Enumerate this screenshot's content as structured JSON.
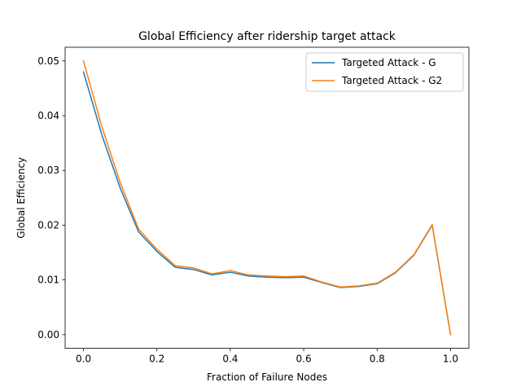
{
  "chart_data": {
    "type": "line",
    "title": "Global Efficiency after ridership target attack",
    "xlabel": "Fraction of Failure Nodes",
    "ylabel": "Global Efficiency",
    "xlim": [
      -0.05,
      1.05
    ],
    "ylim": [
      -0.0025,
      0.0525
    ],
    "xticks": [
      0.0,
      0.2,
      0.4,
      0.6,
      0.8,
      1.0
    ],
    "xtick_labels": [
      "0.0",
      "0.2",
      "0.4",
      "0.6",
      "0.8",
      "1.0"
    ],
    "yticks": [
      0.0,
      0.01,
      0.02,
      0.03,
      0.04,
      0.05
    ],
    "ytick_labels": [
      "0.00",
      "0.01",
      "0.02",
      "0.03",
      "0.04",
      "0.05"
    ],
    "grid": false,
    "legend_position": "top-right",
    "x": [
      0.0,
      0.05,
      0.1,
      0.15,
      0.2,
      0.25,
      0.3,
      0.35,
      0.4,
      0.45,
      0.5,
      0.55,
      0.6,
      0.65,
      0.7,
      0.75,
      0.8,
      0.85,
      0.9,
      0.95,
      1.0
    ],
    "series": [
      {
        "name": "Targeted Attack - G",
        "color": "#1f77b4",
        "values": [
          0.048,
          0.0365,
          0.0268,
          0.0188,
          0.0152,
          0.0123,
          0.0119,
          0.0109,
          0.0114,
          0.0107,
          0.0105,
          0.0104,
          0.0105,
          0.0095,
          0.0086,
          0.0088,
          0.0093,
          0.0113,
          0.0145,
          0.02,
          0.0
        ]
      },
      {
        "name": "Targeted Attack - G2",
        "color": "#ff7f0e",
        "values": [
          0.05,
          0.038,
          0.0278,
          0.0193,
          0.0156,
          0.0126,
          0.0122,
          0.0111,
          0.0117,
          0.0109,
          0.0107,
          0.0106,
          0.0107,
          0.0096,
          0.0087,
          0.0089,
          0.0094,
          0.0114,
          0.0146,
          0.0201,
          0.0
        ]
      }
    ]
  }
}
